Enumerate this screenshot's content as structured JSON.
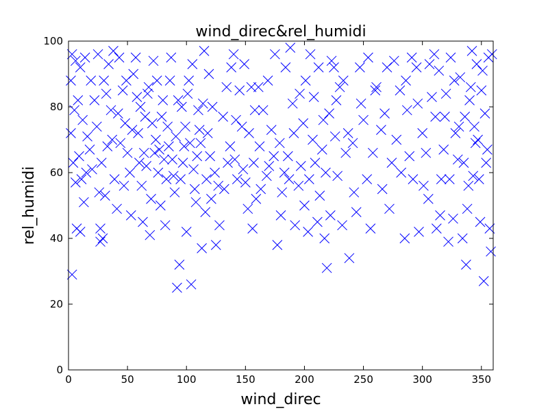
{
  "chart_data": {
    "type": "scatter",
    "title": "wind_direc&rel_humidi",
    "xlabel": "wind_direc",
    "ylabel": "rel_humidi",
    "xlim": [
      0,
      360
    ],
    "ylim": [
      0,
      100
    ],
    "xticks": [
      0,
      50,
      100,
      150,
      200,
      250,
      300,
      350
    ],
    "yticks": [
      0,
      20,
      40,
      60,
      80,
      100
    ],
    "grid": false,
    "marker": "x",
    "color": "#0000ff",
    "series": [
      {
        "points": [
          [
            3,
            29
          ],
          [
            3,
            96
          ],
          [
            6,
            94
          ],
          [
            10,
            92
          ],
          [
            14,
            95
          ],
          [
            2,
            88
          ],
          [
            8,
            82
          ],
          [
            12,
            76
          ],
          [
            5,
            79
          ],
          [
            16,
            71
          ],
          [
            9,
            65
          ],
          [
            4,
            63
          ],
          [
            18,
            67
          ],
          [
            11,
            58
          ],
          [
            6,
            57
          ],
          [
            13,
            51
          ],
          [
            7,
            43
          ],
          [
            10,
            42
          ],
          [
            2,
            72
          ],
          [
            20,
            61
          ],
          [
            26,
            54
          ],
          [
            28,
            63
          ],
          [
            27,
            43
          ],
          [
            27,
            39
          ],
          [
            29,
            40
          ],
          [
            33,
            68
          ],
          [
            30,
            88
          ],
          [
            34,
            93
          ],
          [
            38,
            97
          ],
          [
            36,
            79
          ],
          [
            39,
            58
          ],
          [
            41,
            49
          ],
          [
            44,
            69
          ],
          [
            46,
            85
          ],
          [
            48,
            75
          ],
          [
            50,
            66
          ],
          [
            52,
            60
          ],
          [
            53,
            47
          ],
          [
            55,
            90
          ],
          [
            57,
            95
          ],
          [
            59,
            72
          ],
          [
            61,
            80
          ],
          [
            62,
            56
          ],
          [
            63,
            45
          ],
          [
            65,
            77
          ],
          [
            66,
            62
          ],
          [
            68,
            86
          ],
          [
            70,
            52
          ],
          [
            72,
            94
          ],
          [
            74,
            70
          ],
          [
            76,
            60
          ],
          [
            78,
            50
          ],
          [
            80,
            82
          ],
          [
            82,
            44
          ],
          [
            84,
            74
          ],
          [
            86,
            88
          ],
          [
            88,
            64
          ],
          [
            89,
            59
          ],
          [
            90,
            54
          ],
          [
            92,
            25
          ],
          [
            94,
            32
          ],
          [
            96,
            80
          ],
          [
            98,
            68
          ],
          [
            99,
            74
          ],
          [
            100,
            42
          ],
          [
            102,
            88
          ],
          [
            104,
            26
          ],
          [
            106,
            61
          ],
          [
            108,
            51
          ],
          [
            110,
            79
          ],
          [
            112,
            69
          ],
          [
            113,
            37
          ],
          [
            115,
            97
          ],
          [
            117,
            58
          ],
          [
            120,
            65
          ],
          [
            122,
            80
          ],
          [
            125,
            38
          ],
          [
            128,
            44
          ],
          [
            132,
            55
          ],
          [
            135,
            63
          ],
          [
            138,
            92
          ],
          [
            140,
            96
          ],
          [
            142,
            76
          ],
          [
            145,
            85
          ],
          [
            148,
            61
          ],
          [
            150,
            57
          ],
          [
            153,
            72
          ],
          [
            155,
            86
          ],
          [
            156,
            43
          ],
          [
            159,
            52
          ],
          [
            162,
            68
          ],
          [
            165,
            79
          ],
          [
            168,
            59
          ],
          [
            170,
            62
          ],
          [
            172,
            73
          ],
          [
            175,
            96
          ],
          [
            177,
            38
          ],
          [
            179,
            69
          ],
          [
            181,
            54
          ],
          [
            184,
            92
          ],
          [
            186,
            65
          ],
          [
            188,
            98
          ],
          [
            190,
            81
          ],
          [
            192,
            44
          ],
          [
            195,
            56
          ],
          [
            197,
            62
          ],
          [
            199,
            75
          ],
          [
            201,
            88
          ],
          [
            203,
            42
          ],
          [
            205,
            96
          ],
          [
            207,
            70
          ],
          [
            209,
            63
          ],
          [
            211,
            45
          ],
          [
            213,
            53
          ],
          [
            215,
            67
          ],
          [
            217,
            40
          ],
          [
            219,
            31
          ],
          [
            221,
            78
          ],
          [
            223,
            94
          ],
          [
            225,
            92
          ],
          [
            226,
            71
          ],
          [
            228,
            59
          ],
          [
            230,
            86
          ],
          [
            232,
            44
          ],
          [
            235,
            66
          ],
          [
            238,
            34
          ],
          [
            241,
            69
          ],
          [
            244,
            48
          ],
          [
            247,
            92
          ],
          [
            250,
            76
          ],
          [
            253,
            58
          ],
          [
            256,
            43
          ],
          [
            258,
            66
          ],
          [
            261,
            86
          ],
          [
            265,
            73
          ],
          [
            268,
            78
          ],
          [
            270,
            92
          ],
          [
            272,
            49
          ],
          [
            274,
            63
          ],
          [
            278,
            70
          ],
          [
            282,
            60
          ],
          [
            285,
            40
          ],
          [
            287,
            79
          ],
          [
            289,
            65
          ],
          [
            292,
            58
          ],
          [
            295,
            92
          ],
          [
            297,
            42
          ],
          [
            300,
            72
          ],
          [
            303,
            66
          ],
          [
            305,
            52
          ],
          [
            308,
            83
          ],
          [
            310,
            96
          ],
          [
            312,
            43
          ],
          [
            314,
            91
          ],
          [
            316,
            58
          ],
          [
            318,
            67
          ],
          [
            320,
            84
          ],
          [
            322,
            39
          ],
          [
            324,
            95
          ],
          [
            326,
            46
          ],
          [
            328,
            72
          ],
          [
            330,
            64
          ],
          [
            332,
            89
          ],
          [
            334,
            40
          ],
          [
            336,
            77
          ],
          [
            337,
            32
          ],
          [
            339,
            56
          ],
          [
            340,
            82
          ],
          [
            342,
            97
          ],
          [
            344,
            74
          ],
          [
            345,
            69
          ],
          [
            346,
            93
          ],
          [
            348,
            58
          ],
          [
            350,
            85
          ],
          [
            352,
            27
          ],
          [
            353,
            78
          ],
          [
            354,
            63
          ],
          [
            356,
            95
          ],
          [
            357,
            43
          ],
          [
            358,
            36
          ],
          [
            22,
            82
          ],
          [
            24,
            74
          ],
          [
            31,
            53
          ],
          [
            43,
            95
          ],
          [
            47,
            56
          ],
          [
            58,
            83
          ],
          [
            64,
            66
          ],
          [
            69,
            41
          ],
          [
            73,
            66
          ],
          [
            79,
            77
          ],
          [
            83,
            58
          ],
          [
            87,
            95
          ],
          [
            91,
            71
          ],
          [
            97,
            63
          ],
          [
            101,
            84
          ],
          [
            107,
            55
          ],
          [
            111,
            73
          ],
          [
            116,
            48
          ],
          [
            119,
            90
          ],
          [
            124,
            60
          ],
          [
            131,
            77
          ],
          [
            137,
            68
          ],
          [
            143,
            58
          ],
          [
            149,
            93
          ],
          [
            158,
            79
          ],
          [
            163,
            55
          ],
          [
            169,
            88
          ],
          [
            174,
            65
          ],
          [
            180,
            47
          ],
          [
            183,
            60
          ],
          [
            187,
            58
          ],
          [
            191,
            72
          ],
          [
            196,
            84
          ],
          [
            200,
            50
          ],
          [
            204,
            58
          ],
          [
            208,
            83
          ],
          [
            212,
            92
          ],
          [
            216,
            76
          ],
          [
            218,
            60
          ],
          [
            222,
            47
          ],
          [
            227,
            82
          ],
          [
            233,
            88
          ],
          [
            237,
            72
          ],
          [
            242,
            54
          ],
          [
            248,
            81
          ],
          [
            254,
            95
          ],
          [
            260,
            85
          ],
          [
            266,
            55
          ],
          [
            276,
            94
          ],
          [
            281,
            85
          ],
          [
            286,
            88
          ],
          [
            291,
            95
          ],
          [
            296,
            81
          ],
          [
            301,
            56
          ],
          [
            306,
            93
          ],
          [
            311,
            77
          ],
          [
            315,
            47
          ],
          [
            319,
            77
          ],
          [
            323,
            58
          ],
          [
            327,
            88
          ],
          [
            331,
            74
          ],
          [
            335,
            63
          ],
          [
            338,
            49
          ],
          [
            341,
            86
          ],
          [
            343,
            59
          ],
          [
            347,
            70
          ],
          [
            349,
            45
          ],
          [
            351,
            91
          ],
          [
            355,
            67
          ],
          [
            359,
            96
          ],
          [
            15,
            60
          ],
          [
            19,
            88
          ],
          [
            25,
            96
          ],
          [
            32,
            84
          ],
          [
            37,
            70
          ],
          [
            42,
            78
          ],
          [
            49,
            88
          ],
          [
            54,
            73
          ],
          [
            60,
            63
          ],
          [
            67,
            84
          ],
          [
            71,
            75
          ],
          [
            75,
            88
          ],
          [
            77,
            67
          ],
          [
            81,
            64
          ],
          [
            85,
            68
          ],
          [
            93,
            82
          ],
          [
            95,
            58
          ],
          [
            103,
            69
          ],
          [
            105,
            93
          ],
          [
            109,
            65
          ],
          [
            114,
            81
          ],
          [
            118,
            72
          ],
          [
            121,
            52
          ],
          [
            127,
            56
          ],
          [
            134,
            86
          ],
          [
            141,
            64
          ],
          [
            147,
            74
          ],
          [
            152,
            49
          ],
          [
            157,
            63
          ],
          [
            161,
            86
          ]
        ]
      }
    ]
  }
}
